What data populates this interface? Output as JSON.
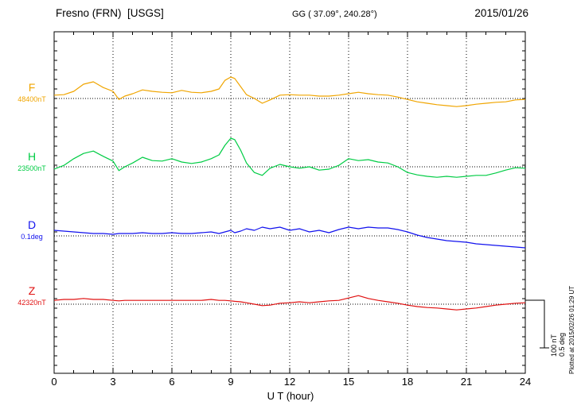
{
  "header": {
    "station": "Fresno (FRN)  [USGS]",
    "coords": "GG ( 37.09°, 240.28°)",
    "date": "2015/01/26"
  },
  "xaxis": {
    "label": "U T (hour)",
    "ticks": [
      0,
      3,
      6,
      9,
      12,
      15,
      18,
      21,
      24
    ],
    "grid_hours": [
      3,
      6,
      9,
      12,
      15,
      18,
      21
    ]
  },
  "scalebar": {
    "label_nt": "100 nT",
    "label_deg": "0.5 deg"
  },
  "footer_note": "Plotted at 2015/02/26 01:29 UT",
  "chart_data": {
    "type": "line",
    "title": "Fresno (FRN)  [USGS] magnetogram 2015/01/26",
    "xlabel": "U T (hour)",
    "xlim": [
      0,
      24
    ],
    "grid": "dotted vertical every 3 hours, dotted horizontal baseline per channel",
    "scale": {
      "nT_per_div": 100,
      "deg_per_div": 0.5
    },
    "series": [
      {
        "channel": "F",
        "baseline_label": "48400nT",
        "baseline_value": 48400,
        "units": "nT",
        "color": "#f0a500",
        "x": [
          0,
          0.5,
          1,
          1.5,
          2,
          2.5,
          3,
          3.3,
          3.6,
          4,
          4.5,
          5,
          5.5,
          6,
          6.5,
          7,
          7.5,
          8,
          8.4,
          8.7,
          9,
          9.2,
          9.5,
          9.8,
          10.2,
          10.6,
          11,
          11.5,
          12,
          12.5,
          13,
          13.5,
          14,
          14.5,
          15,
          15.5,
          16,
          16.5,
          17,
          17.5,
          18,
          18.5,
          19,
          19.5,
          20,
          20.5,
          21,
          21.5,
          22,
          22.5,
          23,
          23.5,
          24
        ],
        "values": [
          7,
          8,
          15,
          30,
          35,
          23,
          15,
          -2,
          5,
          10,
          18,
          15,
          13,
          12,
          17,
          13,
          12,
          15,
          20,
          38,
          45,
          42,
          25,
          8,
          0,
          -10,
          -3,
          7,
          8,
          7,
          7,
          5,
          5,
          7,
          10,
          13,
          10,
          8,
          7,
          3,
          -2,
          -7,
          -10,
          -13,
          -15,
          -17,
          -15,
          -12,
          -10,
          -8,
          -7,
          -3,
          -2
        ]
      },
      {
        "channel": "H",
        "baseline_label": "23500nT",
        "baseline_value": 23500,
        "units": "nT",
        "color": "#00cc44",
        "x": [
          0,
          0.5,
          1,
          1.5,
          2,
          2.5,
          3,
          3.3,
          3.6,
          4,
          4.5,
          5,
          5.5,
          6,
          6.5,
          7,
          7.5,
          8,
          8.4,
          8.7,
          9,
          9.2,
          9.5,
          9.8,
          10.2,
          10.6,
          11,
          11.5,
          12,
          12.5,
          13,
          13.5,
          14,
          14.5,
          15,
          15.5,
          16,
          16.5,
          17,
          17.5,
          18,
          18.5,
          19,
          19.5,
          20,
          20.5,
          21,
          21.5,
          22,
          22.5,
          23,
          23.5,
          24
        ],
        "values": [
          -5,
          3,
          17,
          28,
          33,
          22,
          12,
          -8,
          0,
          8,
          20,
          13,
          12,
          17,
          10,
          7,
          10,
          17,
          25,
          45,
          60,
          57,
          35,
          8,
          -12,
          -18,
          -3,
          5,
          0,
          -3,
          0,
          -7,
          -5,
          3,
          17,
          13,
          15,
          10,
          8,
          0,
          -12,
          -17,
          -20,
          -22,
          -20,
          -22,
          -20,
          -18,
          -18,
          -13,
          -7,
          -2,
          -3
        ]
      },
      {
        "channel": "D",
        "baseline_label": "0.1deg",
        "baseline_value": 0.1,
        "units": "deg",
        "color": "#1212ee",
        "x": [
          0,
          0.5,
          1,
          1.5,
          2,
          2.5,
          3,
          3.3,
          3.6,
          4,
          4.5,
          5,
          5.5,
          6,
          6.5,
          7,
          7.5,
          8,
          8.4,
          8.7,
          9,
          9.2,
          9.5,
          9.8,
          10.2,
          10.6,
          11,
          11.5,
          12,
          12.5,
          13,
          13.5,
          14,
          14.5,
          15,
          15.5,
          16,
          16.5,
          17,
          17.5,
          18,
          18.5,
          19,
          19.5,
          20,
          20.5,
          21,
          21.5,
          22,
          22.5,
          23,
          23.5,
          24
        ],
        "values": [
          0.058,
          0.05,
          0.042,
          0.033,
          0.025,
          0.025,
          0.017,
          0.025,
          0.025,
          0.025,
          0.033,
          0.025,
          0.025,
          0.033,
          0.025,
          0.025,
          0.033,
          0.042,
          0.025,
          0.042,
          0.058,
          0.033,
          0.05,
          0.075,
          0.058,
          0.092,
          0.075,
          0.092,
          0.058,
          0.075,
          0.042,
          0.058,
          0.033,
          0.067,
          0.092,
          0.075,
          0.092,
          0.083,
          0.083,
          0.067,
          0.042,
          0.008,
          -0.017,
          -0.033,
          -0.05,
          -0.058,
          -0.067,
          -0.083,
          -0.092,
          -0.1,
          -0.108,
          -0.117,
          -0.125
        ]
      },
      {
        "channel": "Z",
        "baseline_label": "42320nT",
        "baseline_value": 42320,
        "units": "nT",
        "color": "#e01010",
        "x": [
          0,
          0.5,
          1,
          1.5,
          2,
          2.5,
          3,
          3.3,
          3.6,
          4,
          4.5,
          5,
          5.5,
          6,
          6.5,
          7,
          7.5,
          8,
          8.4,
          8.7,
          9,
          9.2,
          9.5,
          9.8,
          10.2,
          10.6,
          11,
          11.5,
          12,
          12.5,
          13,
          13.5,
          14,
          14.5,
          15,
          15.5,
          16,
          16.5,
          17,
          17.5,
          18,
          18.5,
          19,
          19.5,
          20,
          20.5,
          21,
          21.5,
          22,
          22.5,
          23,
          23.5,
          24
        ],
        "values": [
          8,
          10,
          10,
          12,
          10,
          10,
          8,
          7,
          8,
          8,
          8,
          8,
          8,
          8,
          8,
          8,
          8,
          10,
          8,
          8,
          7,
          6,
          5,
          3,
          0,
          -3,
          -2,
          2,
          3,
          5,
          3,
          5,
          7,
          8,
          13,
          18,
          12,
          8,
          5,
          2,
          -2,
          -5,
          -7,
          -8,
          -10,
          -12,
          -10,
          -8,
          -5,
          -2,
          0,
          2,
          3
        ]
      }
    ]
  }
}
